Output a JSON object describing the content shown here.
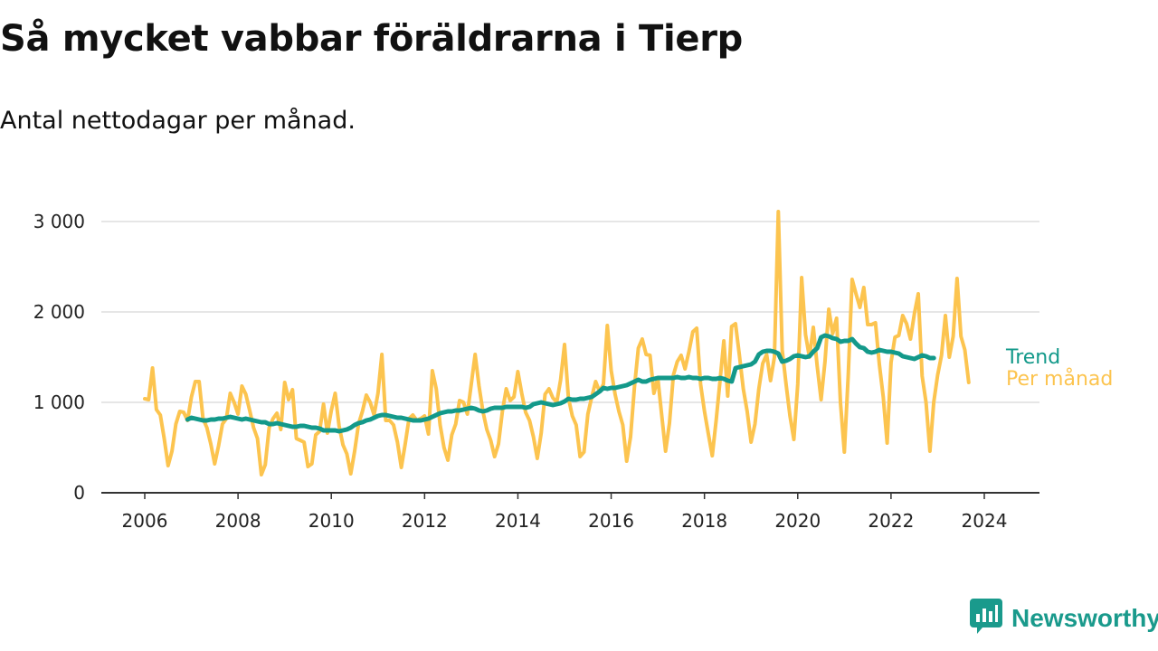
{
  "header": {
    "title": "Så mycket vabbar föräldrarna i Tierp",
    "subtitle": "Antal nettodagar per månad."
  },
  "brand": {
    "name": "Newsworthy",
    "icon": "bar-chart-logo-icon"
  },
  "colors": {
    "trend": "#13998a",
    "monthly": "#fcc44f",
    "grid": "#dddddd",
    "axis": "#333333"
  },
  "chart_data": {
    "type": "line",
    "title": "Så mycket vabbar föräldrarna i Tierp",
    "subtitle": "Antal nettodagar per månad.",
    "xlabel": "",
    "ylabel": "",
    "x_range": [
      2006,
      2024.5
    ],
    "ylim": [
      0,
      3000
    ],
    "y_ticks": [
      {
        "value": 0,
        "label": "0"
      },
      {
        "value": 1000,
        "label": "1 000"
      },
      {
        "value": 2000,
        "label": "2 000"
      },
      {
        "value": 3000,
        "label": "3 000"
      }
    ],
    "x_ticks": [
      {
        "value": 2006,
        "label": "2006"
      },
      {
        "value": 2008,
        "label": "2008"
      },
      {
        "value": 2010,
        "label": "2010"
      },
      {
        "value": 2012,
        "label": "2012"
      },
      {
        "value": 2014,
        "label": "2014"
      },
      {
        "value": 2016,
        "label": "2016"
      },
      {
        "value": 2018,
        "label": "2018"
      },
      {
        "value": 2020,
        "label": "2020"
      },
      {
        "value": 2022,
        "label": "2022"
      },
      {
        "value": 2024,
        "label": "2024"
      }
    ],
    "grid": true,
    "legend_placement": "right, at line ends",
    "series": [
      {
        "name": "Per månad",
        "start": 2006.0,
        "step": 0.0833333,
        "values": [
          1040,
          1030,
          1380,
          920,
          860,
          600,
          300,
          460,
          760,
          900,
          890,
          800,
          1060,
          1230,
          1230,
          820,
          720,
          540,
          320,
          520,
          760,
          820,
          1100,
          1000,
          870,
          1180,
          1090,
          910,
          720,
          600,
          200,
          310,
          720,
          820,
          880,
          700,
          1220,
          1030,
          1140,
          600,
          580,
          560,
          290,
          320,
          640,
          680,
          980,
          660,
          910,
          1100,
          740,
          530,
          430,
          210,
          460,
          760,
          900,
          1080,
          1000,
          860,
          1100,
          1530,
          800,
          800,
          750,
          560,
          280,
          540,
          820,
          860,
          800,
          820,
          850,
          650,
          1350,
          1150,
          750,
          500,
          360,
          640,
          760,
          1020,
          1000,
          870,
          1200,
          1530,
          1180,
          900,
          700,
          580,
          400,
          540,
          900,
          1150,
          1020,
          1060,
          1340,
          1100,
          890,
          800,
          620,
          380,
          660,
          1090,
          1150,
          1050,
          1000,
          1250,
          1640,
          1050,
          850,
          750,
          400,
          450,
          870,
          1060,
          1230,
          1120,
          1200,
          1850,
          1350,
          1090,
          900,
          750,
          350,
          620,
          1170,
          1600,
          1700,
          1530,
          1520,
          1100,
          1270,
          860,
          460,
          770,
          1300,
          1450,
          1520,
          1370,
          1560,
          1780,
          1820,
          1200,
          900,
          650,
          410,
          800,
          1240,
          1680,
          1070,
          1840,
          1870,
          1520,
          1150,
          900,
          560,
          760,
          1150,
          1430,
          1530,
          1240,
          1500,
          3110,
          1580,
          1200,
          850,
          590,
          1200,
          2380,
          1750,
          1500,
          1830,
          1400,
          1030,
          1450,
          2030,
          1760,
          1930,
          1000,
          450,
          1300,
          2360,
          2200,
          2050,
          2270,
          1860,
          1860,
          1880,
          1420,
          1060,
          550,
          1440,
          1720,
          1740,
          1960,
          1870,
          1700,
          1980,
          2200,
          1290,
          1000,
          460,
          1000,
          1300,
          1520,
          1960,
          1500,
          1730,
          2370,
          1730,
          1580,
          1220
        ]
      },
      {
        "name": "Trend",
        "start": 2006.917,
        "step": 0.0833333,
        "values": [
          810,
          830,
          820,
          810,
          800,
          800,
          810,
          810,
          820,
          820,
          830,
          840,
          830,
          820,
          810,
          820,
          810,
          800,
          790,
          780,
          780,
          760,
          760,
          770,
          760,
          750,
          740,
          730,
          730,
          740,
          740,
          730,
          720,
          720,
          710,
          690,
          690,
          690,
          690,
          680,
          690,
          700,
          720,
          750,
          770,
          780,
          800,
          810,
          830,
          850,
          860,
          860,
          850,
          840,
          830,
          830,
          820,
          810,
          800,
          800,
          800,
          810,
          820,
          840,
          860,
          880,
          890,
          900,
          900,
          910,
          910,
          920,
          930,
          940,
          930,
          910,
          900,
          910,
          930,
          940,
          940,
          940,
          950,
          950,
          950,
          950,
          950,
          940,
          950,
          980,
          990,
          1000,
          990,
          980,
          970,
          980,
          990,
          1010,
          1040,
          1030,
          1030,
          1040,
          1040,
          1050,
          1060,
          1090,
          1120,
          1160,
          1150,
          1160,
          1160,
          1170,
          1180,
          1190,
          1210,
          1230,
          1250,
          1230,
          1230,
          1250,
          1260,
          1270,
          1270,
          1270,
          1270,
          1270,
          1280,
          1270,
          1270,
          1280,
          1270,
          1270,
          1260,
          1270,
          1270,
          1260,
          1260,
          1270,
          1260,
          1240,
          1230,
          1380,
          1390,
          1400,
          1410,
          1420,
          1450,
          1530,
          1560,
          1570,
          1570,
          1560,
          1540,
          1450,
          1460,
          1480,
          1510,
          1520,
          1510,
          1500,
          1510,
          1560,
          1600,
          1720,
          1740,
          1730,
          1710,
          1700,
          1670,
          1680,
          1680,
          1700,
          1650,
          1610,
          1600,
          1560,
          1550,
          1560,
          1580,
          1570,
          1560,
          1560,
          1550,
          1540,
          1510,
          1500,
          1490,
          1480,
          1500,
          1520,
          1510,
          1490,
          1490
        ]
      }
    ]
  }
}
